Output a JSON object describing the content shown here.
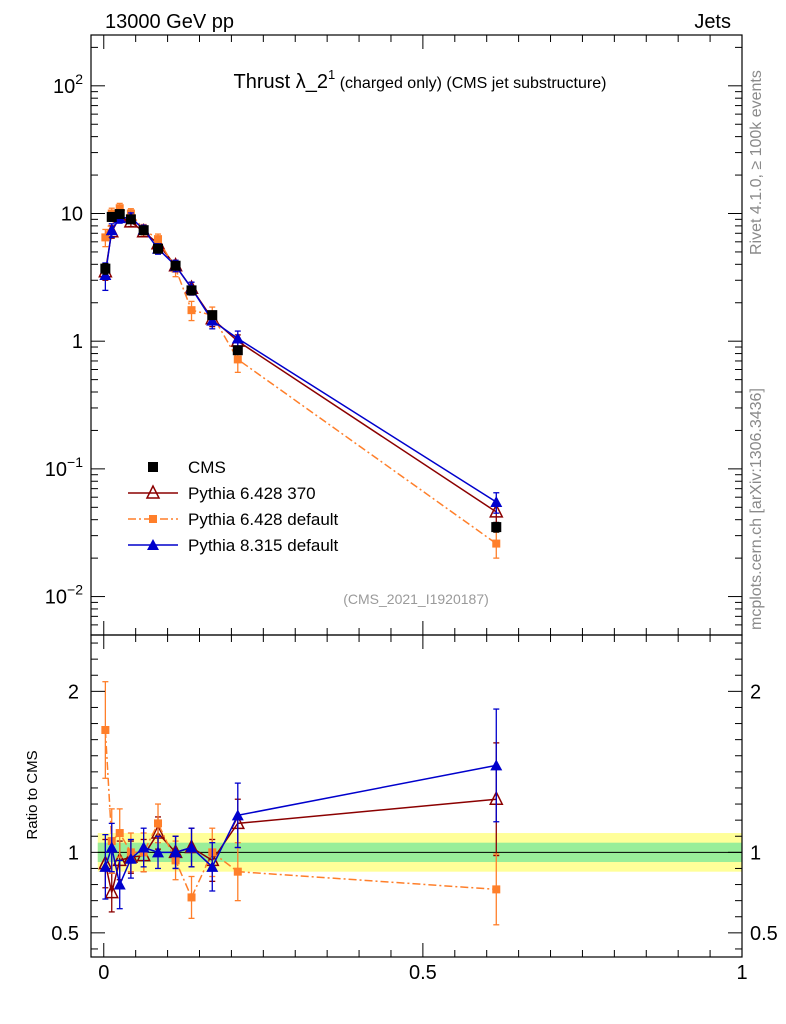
{
  "header": {
    "left": "13000 GeV pp",
    "right": "Jets"
  },
  "side": {
    "rivet": "Rivet 4.1.0, ≥ 100k events",
    "site": "mcplots.cern.ch [arXiv:1306.3436]"
  },
  "chart_data": {
    "type": "line",
    "title_main": "Thrust λ_2",
    "title_sup": "1",
    "title_rest": " (charged only) (CMS jet substructure)",
    "analysis_tag": "(CMS_2021_I1920187)",
    "x_axis": {
      "range": [
        -0.02,
        1.0
      ],
      "ticks": [
        0,
        0.5,
        1
      ],
      "tick_labels": [
        "0",
        "0.5",
        "1"
      ],
      "label": ""
    },
    "y_axis": {
      "scale": "log",
      "range": [
        0.005,
        250
      ],
      "tick_values": [
        0.01,
        0.1,
        1,
        10,
        100
      ],
      "tick_labels": [
        {
          "base": "10",
          "exp": "−2"
        },
        {
          "base": "10",
          "exp": "−1"
        },
        {
          "base": "1",
          "exp": ""
        },
        {
          "base": "10",
          "exp": ""
        },
        {
          "base": "10",
          "exp": "2"
        }
      ]
    },
    "ratio_axis": {
      "label": "Ratio to CMS",
      "range": [
        0.35,
        2.35
      ],
      "ticks": [
        0.5,
        1,
        2
      ],
      "tick_labels": [
        "0.5",
        "1",
        "2"
      ]
    },
    "legend": {
      "position": "lower-left",
      "entries": [
        "CMS",
        "Pythia 6.428 370",
        "Pythia 6.428 default",
        "Pythia 8.315 default"
      ]
    },
    "x": [
      0.0025,
      0.0125,
      0.025,
      0.0425,
      0.0625,
      0.085,
      0.1125,
      0.1375,
      0.17,
      0.21,
      0.615
    ],
    "series": [
      {
        "name": "CMS",
        "color": "#000000",
        "marker": "square",
        "values": [
          3.7,
          9.4,
          9.9,
          9.0,
          7.4,
          5.3,
          3.9,
          2.5,
          1.6,
          0.85,
          0.035
        ],
        "errors": [
          0.35,
          0.7,
          0.6,
          0.5,
          0.45,
          0.35,
          0.25,
          0.15,
          0.09,
          0.05,
          0.003
        ]
      },
      {
        "name": "Pythia 6.428 370",
        "color": "#8b0000",
        "marker": "triangle-open",
        "line": "solid",
        "values": [
          3.5,
          7.2,
          9.4,
          8.6,
          7.2,
          5.8,
          3.9,
          2.6,
          1.5,
          1.0,
          0.046
        ],
        "errors": [
          0.5,
          0.8,
          0.8,
          0.7,
          0.6,
          0.5,
          0.4,
          0.3,
          0.2,
          0.12,
          0.008
        ],
        "ratio": [
          0.93,
          0.75,
          0.95,
          0.97,
          0.98,
          1.12,
          1.0,
          1.03,
          0.95,
          1.18,
          1.33
        ],
        "ratio_err": [
          0.15,
          0.12,
          0.12,
          0.1,
          0.1,
          0.1,
          0.1,
          0.12,
          0.13,
          0.15,
          0.35
        ]
      },
      {
        "name": "Pythia 6.428 default",
        "color": "#ff7f2a",
        "marker": "square-small",
        "line": "dashdot",
        "values": [
          6.5,
          10.0,
          11.0,
          10.0,
          7.5,
          6.3,
          3.7,
          1.75,
          1.6,
          0.72,
          0.026
        ],
        "errors": [
          1.0,
          1.0,
          1.0,
          0.9,
          0.7,
          0.6,
          0.5,
          0.3,
          0.25,
          0.15,
          0.006
        ],
        "ratio": [
          1.76,
          1.07,
          1.12,
          1.0,
          1.0,
          1.18,
          0.95,
          0.72,
          1.0,
          0.88,
          0.77
        ],
        "ratio_err": [
          0.3,
          0.2,
          0.15,
          0.12,
          0.12,
          0.12,
          0.12,
          0.13,
          0.15,
          0.18,
          0.22
        ]
      },
      {
        "name": "Pythia 8.315 default",
        "color": "#0000cc",
        "marker": "triangle",
        "line": "solid",
        "values": [
          3.3,
          7.4,
          9.2,
          9.3,
          7.5,
          5.3,
          3.9,
          2.6,
          1.45,
          1.05,
          0.055
        ],
        "errors": [
          0.8,
          0.9,
          0.8,
          0.8,
          0.6,
          0.5,
          0.4,
          0.3,
          0.2,
          0.15,
          0.01
        ],
        "ratio": [
          0.91,
          1.03,
          0.8,
          0.96,
          1.03,
          1.0,
          1.0,
          1.03,
          0.91,
          1.23,
          1.54
        ],
        "ratio_err": [
          0.2,
          0.15,
          0.15,
          0.12,
          0.12,
          0.1,
          0.1,
          0.12,
          0.15,
          0.2,
          0.35
        ]
      }
    ],
    "ratio_band": {
      "inner": [
        0.94,
        1.06
      ],
      "outer": [
        0.88,
        1.12
      ]
    }
  }
}
